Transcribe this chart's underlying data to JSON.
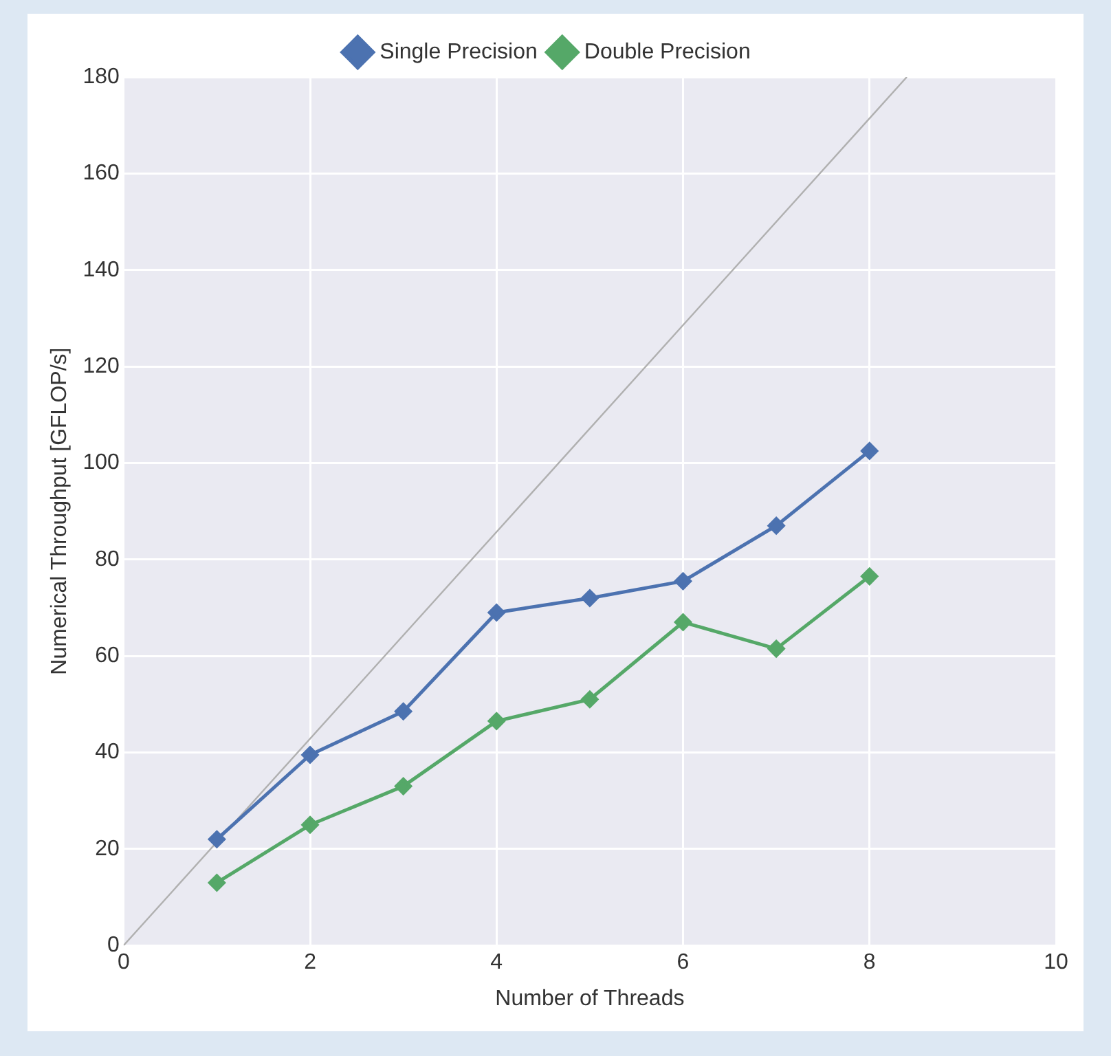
{
  "chart_data": {
    "type": "line",
    "xlabel": "Number of Threads",
    "ylabel": "Numerical Throughput [GFLOP/s]",
    "xlim": [
      0,
      10
    ],
    "xticks": [
      0,
      2,
      4,
      6,
      8,
      10
    ],
    "ylim": [
      0,
      180
    ],
    "yticks": [
      0,
      20,
      40,
      60,
      80,
      100,
      120,
      140,
      160,
      180
    ],
    "grid": true,
    "legend": "top",
    "marker": "diamond",
    "series": [
      {
        "name": "Single Precision",
        "color": "#4c72b0",
        "x": [
          1,
          2,
          3,
          4,
          5,
          6,
          7,
          8
        ],
        "values": [
          22,
          39.5,
          48.5,
          69,
          72,
          75.5,
          87,
          102.5
        ]
      },
      {
        "name": "Double Precision",
        "color": "#55a868",
        "x": [
          1,
          2,
          3,
          4,
          5,
          6,
          7,
          8
        ],
        "values": [
          13,
          25,
          33,
          46.5,
          51,
          67,
          61.5,
          76.5
        ]
      },
      {
        "type": "line",
        "color": "#b0b0b0",
        "marker": "none",
        "x": [
          0,
          8.4
        ],
        "values": [
          0,
          180
        ]
      }
    ]
  }
}
